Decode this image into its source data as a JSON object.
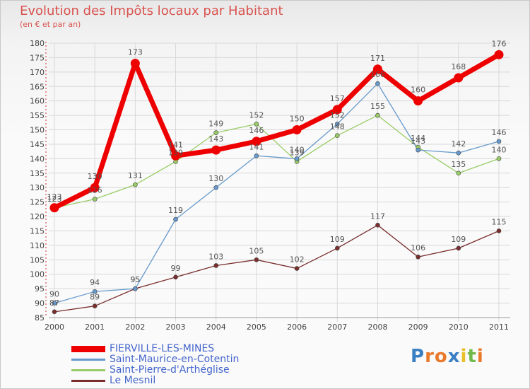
{
  "chart_data": {
    "type": "line",
    "title": "Evolution des Impôts locaux par Habitant",
    "subtitle": "(en € et par an)",
    "categories": [
      "2000",
      "2001",
      "2002",
      "2003",
      "2004",
      "2005",
      "2006",
      "2007",
      "2008",
      "2009",
      "2010",
      "2011"
    ],
    "ylim": [
      85,
      180
    ],
    "yticks": [
      85,
      90,
      95,
      100,
      105,
      110,
      115,
      120,
      125,
      130,
      135,
      140,
      145,
      150,
      155,
      160,
      165,
      170,
      175,
      180
    ],
    "grid": true,
    "series": [
      {
        "name": "FIERVILLE-LES-MINES",
        "color": "#ee0000",
        "values": [
          123,
          130,
          173,
          141,
          143,
          146,
          150,
          157,
          171,
          160,
          168,
          176
        ]
      },
      {
        "name": "Saint-Maurice-en-Cotentin",
        "color": "#6699cc",
        "values": [
          90,
          94,
          95,
          119,
          130,
          141,
          140,
          152,
          166,
          143,
          142,
          146
        ]
      },
      {
        "name": "Saint-Pierre-d'Arthéglise",
        "color": "#99cc66",
        "values": [
          123,
          126,
          131,
          139,
          149,
          152,
          139,
          148,
          155,
          144,
          135,
          140
        ]
      },
      {
        "name": "Le Mesnil",
        "color": "#7a2e2e",
        "values": [
          87,
          89,
          95,
          99,
          103,
          105,
          102,
          109,
          117,
          106,
          109,
          115
        ]
      }
    ]
  },
  "logo": {
    "text": "Proxiti",
    "letters": [
      "P",
      "r",
      "o",
      "x",
      "i",
      "t",
      "i"
    ],
    "colors": [
      "#3a7fc4",
      "#e9792b",
      "#e9792b",
      "#3a7fc4",
      "#e9c02b",
      "#73b84a",
      "#e9792b"
    ]
  }
}
